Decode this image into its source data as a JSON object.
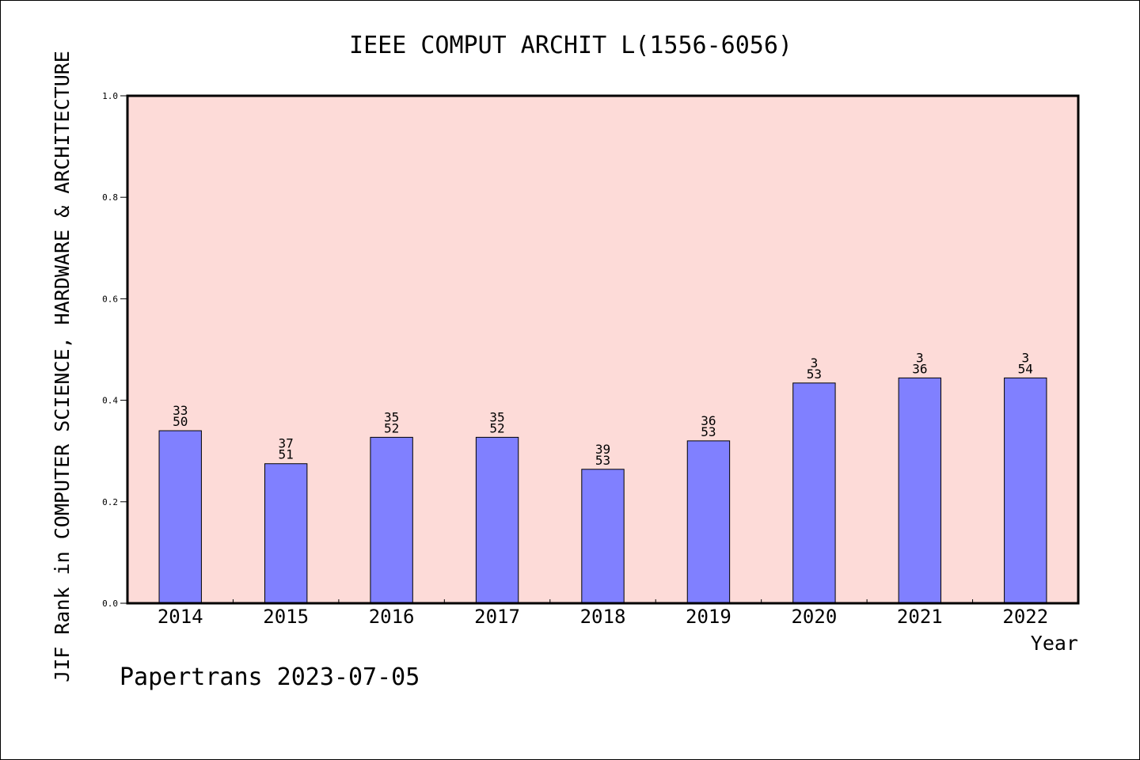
{
  "chart_data": {
    "type": "bar",
    "title": "IEEE COMPUT ARCHIT L(1556-6056)",
    "xlabel": "Year",
    "ylabel": "JIF Rank in COMPUTER SCIENCE, HARDWARE & ARCHITECTURE",
    "ylim": [
      0,
      1.0
    ],
    "yticks": [
      "0.0",
      "0.2",
      "0.4",
      "0.6",
      "0.8",
      "1.0"
    ],
    "categories": [
      "2014",
      "2015",
      "2016",
      "2017",
      "2018",
      "2019",
      "2020",
      "2021",
      "2022"
    ],
    "values": [
      0.34,
      0.275,
      0.327,
      0.327,
      0.264,
      0.32,
      0.434,
      0.444,
      0.444
    ],
    "bar_labels": [
      [
        "33",
        "50"
      ],
      [
        "37",
        "51"
      ],
      [
        "35",
        "52"
      ],
      [
        "35",
        "52"
      ],
      [
        "39",
        "53"
      ],
      [
        "36",
        "53"
      ],
      [
        "3",
        "53"
      ],
      [
        "3",
        "36"
      ],
      [
        "3",
        "54"
      ]
    ],
    "grid": false,
    "colors": {
      "bar": "#8080ff",
      "plot_background": "#fddbd8"
    }
  },
  "footer": "Papertrans 2023-07-05"
}
